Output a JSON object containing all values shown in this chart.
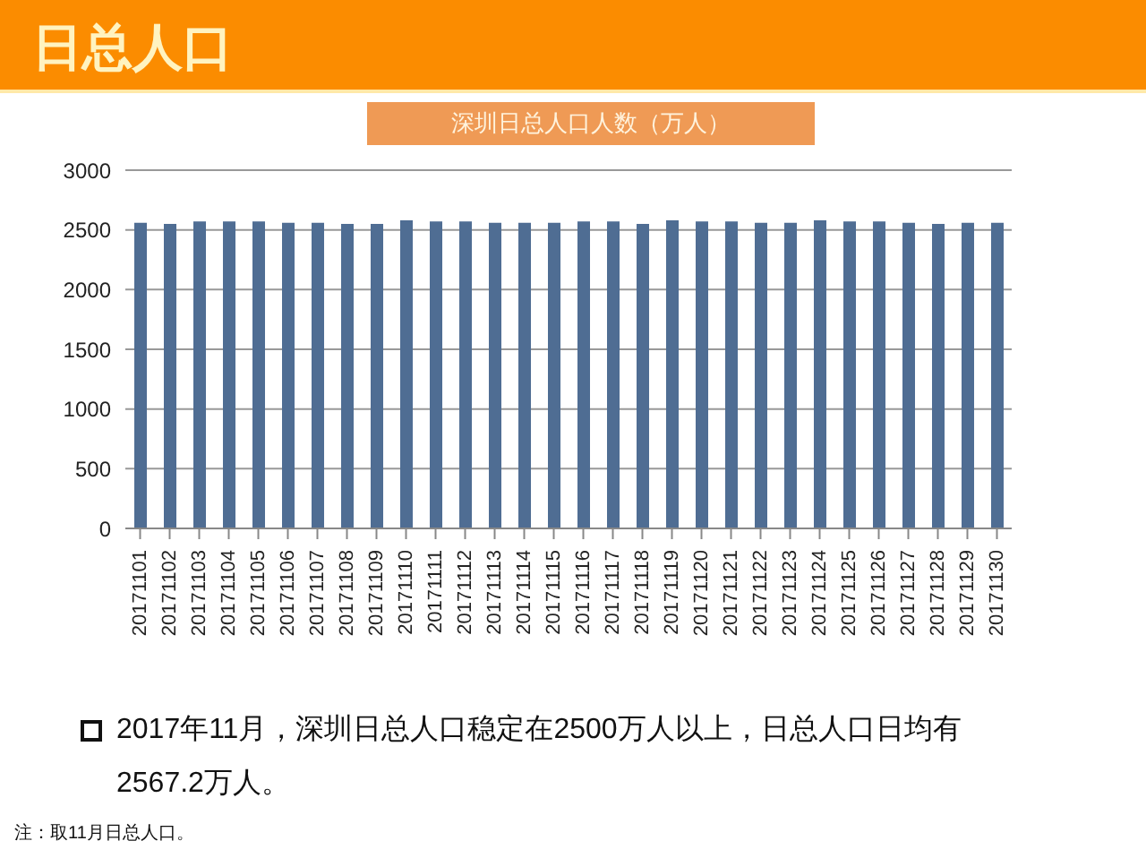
{
  "chart_data": {
    "type": "bar",
    "title": "日总人口",
    "subtitle": "深圳日总人口人数（万人）",
    "categories": [
      "20171101",
      "20171102",
      "20171103",
      "20171104",
      "20171105",
      "20171106",
      "20171107",
      "20171108",
      "20171109",
      "20171110",
      "20171111",
      "20171112",
      "20171113",
      "20171114",
      "20171115",
      "20171116",
      "20171117",
      "20171118",
      "20171119",
      "20171120",
      "20171121",
      "20171122",
      "20171123",
      "20171124",
      "20171125",
      "20171126",
      "20171127",
      "20171128",
      "20171129",
      "20171130"
    ],
    "values": [
      2560,
      2550,
      2570,
      2570,
      2570,
      2560,
      2560,
      2550,
      2550,
      2580,
      2570,
      2570,
      2560,
      2560,
      2560,
      2570,
      2570,
      2550,
      2580,
      2570,
      2570,
      2560,
      2560,
      2580,
      2570,
      2570,
      2560,
      2550,
      2560,
      2560
    ],
    "color": "#4f6d93",
    "ylim": [
      0,
      3000
    ],
    "yticks": [
      0,
      500,
      1000,
      1500,
      2000,
      2500,
      3000
    ],
    "grid": "y",
    "annotations": [
      "2017年11月，深圳日总人口稳定在2500万人以上，日总人口日均有2567.2万人。",
      "注：取11月日总人口。"
    ]
  }
}
